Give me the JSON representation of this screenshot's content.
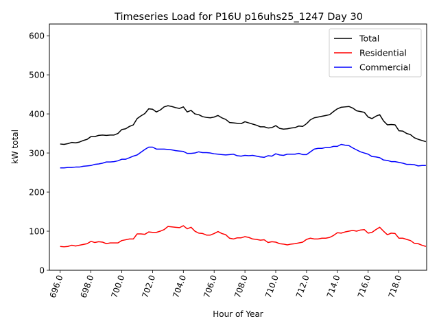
{
  "chart_data": {
    "type": "line",
    "title": "Timeseries Load for P16U p16uhs25_1247  Day 30",
    "xlabel": "Hour of Year",
    "ylabel": "kW total",
    "xlim": [
      695.3,
      719.8
    ],
    "ylim": [
      0,
      630
    ],
    "x_ticks": [
      696,
      698,
      700,
      702,
      704,
      706,
      708,
      710,
      712,
      714,
      716,
      718
    ],
    "x_tick_labels": [
      "696.0",
      "698.0",
      "700.0",
      "702.0",
      "704.0",
      "706.0",
      "708.0",
      "710.0",
      "712.0",
      "714.0",
      "716.0",
      "718.0"
    ],
    "y_ticks": [
      0,
      100,
      200,
      300,
      400,
      500,
      600
    ],
    "y_tick_labels": [
      "0",
      "100",
      "200",
      "300",
      "400",
      "500",
      "600"
    ],
    "legend_position": "top-right",
    "x_start": 696,
    "x_step": 0.25,
    "series": [
      {
        "name": "Total",
        "color": "#000000",
        "values": [
          323,
          322,
          324,
          327,
          326,
          328,
          332,
          335,
          342,
          342,
          345,
          346,
          345,
          346,
          346,
          350,
          360,
          362,
          368,
          372,
          388,
          395,
          401,
          413,
          412,
          405,
          410,
          418,
          421,
          419,
          416,
          414,
          418,
          405,
          409,
          400,
          398,
          393,
          391,
          390,
          392,
          396,
          390,
          386,
          378,
          377,
          376,
          375,
          380,
          377,
          374,
          371,
          367,
          367,
          364,
          365,
          370,
          363,
          361,
          362,
          364,
          365,
          369,
          368,
          375,
          385,
          390,
          392,
          394,
          396,
          398,
          406,
          413,
          417,
          418,
          419,
          415,
          408,
          406,
          404,
          392,
          388,
          394,
          398,
          382,
          372,
          373,
          372,
          357,
          356,
          350,
          347,
          339,
          335,
          332,
          329
        ]
      },
      {
        "name": "Residential",
        "color": "#ff0000",
        "values": [
          61,
          60,
          61,
          64,
          62,
          64,
          66,
          68,
          74,
          71,
          73,
          72,
          68,
          70,
          70,
          70,
          76,
          78,
          80,
          80,
          93,
          93,
          92,
          98,
          97,
          97,
          100,
          104,
          112,
          111,
          110,
          109,
          114,
          106,
          110,
          100,
          95,
          94,
          90,
          90,
          94,
          99,
          94,
          91,
          82,
          80,
          83,
          83,
          86,
          84,
          80,
          79,
          77,
          78,
          71,
          73,
          72,
          68,
          67,
          65,
          67,
          68,
          70,
          72,
          79,
          82,
          80,
          80,
          82,
          82,
          84,
          89,
          96,
          95,
          98,
          100,
          102,
          100,
          103,
          104,
          95,
          97,
          104,
          110,
          100,
          91,
          95,
          94,
          82,
          82,
          79,
          76,
          69,
          68,
          64,
          61
        ]
      },
      {
        "name": "Commercial",
        "color": "#0000ff",
        "values": [
          262,
          262,
          263,
          263,
          264,
          264,
          266,
          267,
          268,
          271,
          272,
          274,
          277,
          277,
          278,
          280,
          284,
          284,
          288,
          292,
          295,
          302,
          309,
          315,
          315,
          310,
          310,
          310,
          309,
          308,
          306,
          305,
          304,
          299,
          299,
          300,
          303,
          301,
          301,
          300,
          298,
          297,
          296,
          295,
          296,
          297,
          293,
          292,
          294,
          293,
          294,
          292,
          290,
          289,
          293,
          292,
          298,
          295,
          294,
          297,
          297,
          297,
          299,
          296,
          296,
          303,
          310,
          312,
          312,
          314,
          314,
          317,
          317,
          322,
          320,
          319,
          313,
          308,
          303,
          300,
          297,
          291,
          290,
          288,
          282,
          281,
          278,
          278,
          276,
          274,
          271,
          271,
          270,
          267,
          268,
          268
        ]
      }
    ]
  }
}
